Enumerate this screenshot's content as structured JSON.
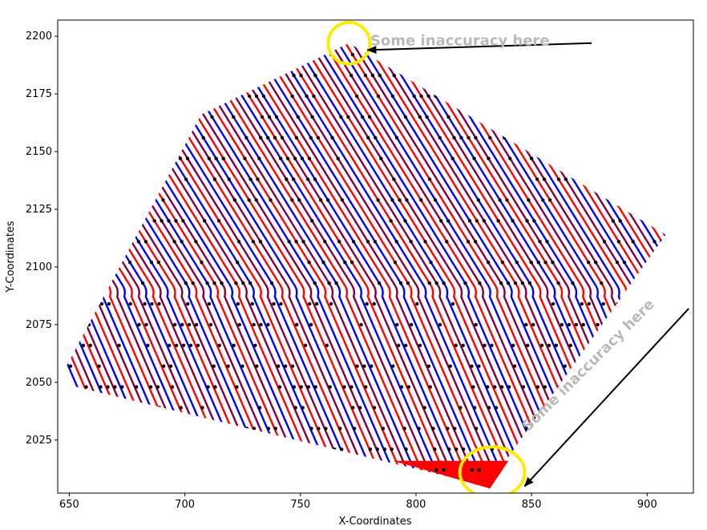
{
  "chart_data": {
    "type": "line",
    "xlabel": "X-Coordinates",
    "ylabel": "Y-Coordinates",
    "xlim": [
      645,
      920
    ],
    "ylim": [
      2002,
      2207
    ],
    "xticks": [
      650,
      700,
      750,
      800,
      850,
      900
    ],
    "yticks": [
      2025,
      2050,
      2075,
      2100,
      2125,
      2150,
      2175,
      2200
    ],
    "grid": false,
    "region_outline": {
      "description_points": [
        [
          645,
          2050
        ],
        [
          707,
          2166
        ],
        [
          771,
          2197
        ],
        [
          908,
          2114
        ],
        [
          831,
          2005
        ],
        [
          645,
          2050
        ]
      ]
    },
    "series": [
      {
        "color": "#0000ff"
      },
      {
        "color": "#ff0000"
      },
      {
        "color": "#800040"
      }
    ],
    "sample_points_color": "#000000",
    "hatch_spacing_x": 3.1,
    "bend_region": {
      "left_edge_x": [
        684,
        2118,
        733,
        2045
      ],
      "zigzag_start": [
        [
          684,
          2118
        ],
        [
          700,
          2104
        ],
        [
          730,
          2090
        ],
        [
          760,
          2085
        ],
        [
          800,
          2085
        ],
        [
          835,
          2078
        ]
      ]
    },
    "filled_patch": {
      "color": "#ff0000",
      "points": [
        [
          790,
          2016
        ],
        [
          840,
          2016
        ],
        [
          832,
          2004
        ]
      ]
    },
    "annotations": [
      {
        "text": "Some inaccuracy here",
        "text_rotation": 0,
        "text_x": 819,
        "text_y": 2196,
        "arrow_from": [
          876,
          2197
        ],
        "arrow_to": [
          779,
          2194
        ],
        "circle_center": [
          771,
          2197
        ],
        "circle_radius_x": 9,
        "circle_radius_y": 9
      },
      {
        "text": "Some inaccuracy here",
        "text_rotation": -45,
        "text_x": 876,
        "text_y": 2056,
        "arrow_from": [
          918,
          2082
        ],
        "arrow_to": [
          847,
          2005
        ],
        "circle_center": [
          833,
          2011
        ],
        "circle_radius_x": 14,
        "circle_radius_y": 11
      }
    ],
    "annotation_color": "#ffeb00",
    "arrow_color": "#000000"
  }
}
